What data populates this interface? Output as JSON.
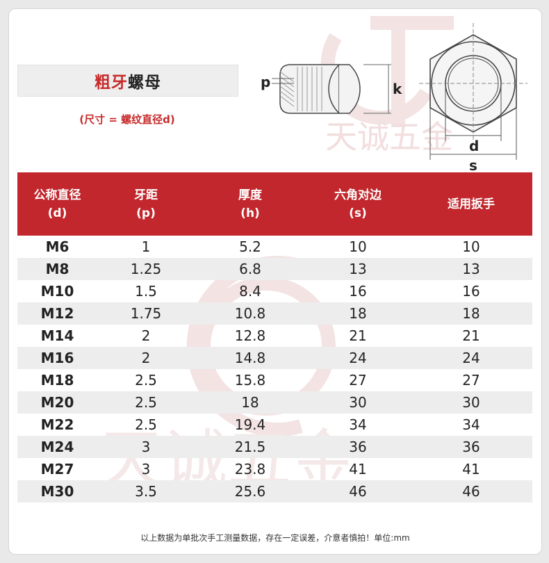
{
  "title": {
    "part1": "粗牙",
    "part2": "螺母"
  },
  "subtitle": "(尺寸 = 螺纹直径d)",
  "watermark_text": "天诚五金",
  "diagram_labels": {
    "p": "p",
    "k": "k",
    "d": "d",
    "s": "s"
  },
  "table": {
    "headers": [
      {
        "line1": "公称直径",
        "line2": "(d)"
      },
      {
        "line1": "牙距",
        "line2": "(p)"
      },
      {
        "line1": "厚度",
        "line2": "(h)"
      },
      {
        "line1": "六角对边",
        "line2": "(s)"
      },
      {
        "line1": "适用扳手",
        "line2": ""
      }
    ],
    "rows": [
      [
        "M6",
        "1",
        "5.2",
        "10",
        "10"
      ],
      [
        "M8",
        "1.25",
        "6.8",
        "13",
        "13"
      ],
      [
        "M10",
        "1.5",
        "8.4",
        "16",
        "16"
      ],
      [
        "M12",
        "1.75",
        "10.8",
        "18",
        "18"
      ],
      [
        "M14",
        "2",
        "12.8",
        "21",
        "21"
      ],
      [
        "M16",
        "2",
        "14.8",
        "24",
        "24"
      ],
      [
        "M18",
        "2.5",
        "15.8",
        "27",
        "27"
      ],
      [
        "M20",
        "2.5",
        "18",
        "30",
        "30"
      ],
      [
        "M22",
        "2.5",
        "19.4",
        "34",
        "34"
      ],
      [
        "M24",
        "3",
        "21.5",
        "36",
        "36"
      ],
      [
        "M27",
        "3",
        "23.8",
        "41",
        "41"
      ],
      [
        "M30",
        "3.5",
        "25.6",
        "46",
        "46"
      ]
    ]
  },
  "footer": "以上数据为单批次手工测量数据，存在一定误差，介意者慎拍！单位:mm",
  "colors": {
    "accent": "#c1272d",
    "stripe": "#ededed"
  }
}
